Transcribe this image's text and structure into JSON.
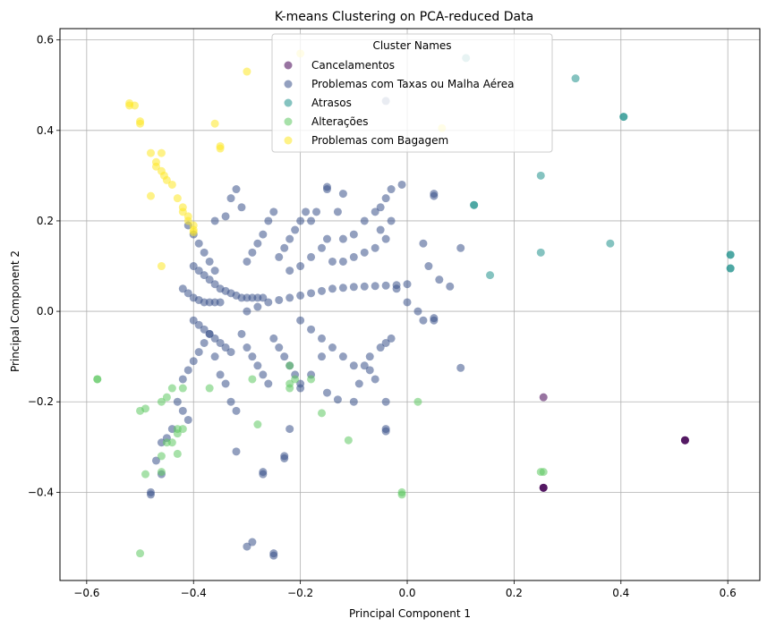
{
  "chart_data": {
    "type": "scatter",
    "title": "K-means Clustering on PCA-reduced Data",
    "xlabel": "Principal Component 1",
    "ylabel": "Principal Component 2",
    "xlim": [
      -0.65,
      0.66
    ],
    "ylim": [
      -0.595,
      0.625
    ],
    "xticks": [
      -0.6,
      -0.4,
      -0.2,
      0.0,
      0.2,
      0.4,
      0.6
    ],
    "xtick_labels": [
      "−0.6",
      "−0.4",
      "−0.2",
      "0.0",
      "0.2",
      "0.4",
      "0.6"
    ],
    "yticks": [
      -0.4,
      -0.2,
      0.0,
      0.2,
      0.4,
      0.6
    ],
    "ytick_labels": [
      "−0.4",
      "−0.2",
      "0.0",
      "0.2",
      "0.4",
      "0.6"
    ],
    "grid": true,
    "legend": {
      "title": "Cluster Names",
      "position": "top-center"
    },
    "series": [
      {
        "name": "Cancelamentos",
        "color": "#440154",
        "points": [
          [
            0.52,
            -0.285
          ],
          [
            0.52,
            -0.285
          ],
          [
            0.52,
            -0.285
          ],
          [
            0.255,
            -0.39
          ],
          [
            0.255,
            -0.39
          ],
          [
            0.255,
            -0.39
          ],
          [
            0.255,
            -0.19
          ]
        ]
      },
      {
        "name": "Problemas com Taxas ou Malha Aérea",
        "color": "#3b528b",
        "points": [
          [
            -0.4,
            0.1
          ],
          [
            -0.39,
            0.09
          ],
          [
            -0.38,
            0.08
          ],
          [
            -0.37,
            0.07
          ],
          [
            -0.36,
            0.06
          ],
          [
            -0.35,
            0.05
          ],
          [
            -0.34,
            0.045
          ],
          [
            -0.33,
            0.04
          ],
          [
            -0.32,
            0.035
          ],
          [
            -0.31,
            0.03
          ],
          [
            -0.3,
            0.03
          ],
          [
            -0.29,
            0.03
          ],
          [
            -0.28,
            0.03
          ],
          [
            -0.27,
            0.03
          ],
          [
            -0.41,
            0.19
          ],
          [
            -0.4,
            0.17
          ],
          [
            -0.39,
            0.15
          ],
          [
            -0.38,
            0.13
          ],
          [
            -0.37,
            0.11
          ],
          [
            -0.36,
            0.09
          ],
          [
            -0.42,
            0.05
          ],
          [
            -0.41,
            0.04
          ],
          [
            -0.4,
            0.03
          ],
          [
            -0.39,
            0.025
          ],
          [
            -0.38,
            0.02
          ],
          [
            -0.37,
            0.02
          ],
          [
            -0.36,
            0.02
          ],
          [
            -0.35,
            0.02
          ],
          [
            -0.4,
            -0.02
          ],
          [
            -0.39,
            -0.03
          ],
          [
            -0.38,
            -0.04
          ],
          [
            -0.37,
            -0.05
          ],
          [
            -0.36,
            -0.06
          ],
          [
            -0.35,
            -0.07
          ],
          [
            -0.34,
            -0.08
          ],
          [
            -0.33,
            -0.09
          ],
          [
            -0.42,
            -0.15
          ],
          [
            -0.41,
            -0.13
          ],
          [
            -0.4,
            -0.11
          ],
          [
            -0.39,
            -0.09
          ],
          [
            -0.38,
            -0.07
          ],
          [
            -0.37,
            -0.05
          ],
          [
            -0.43,
            -0.2
          ],
          [
            -0.42,
            -0.22
          ],
          [
            -0.41,
            -0.24
          ],
          [
            -0.44,
            -0.26
          ],
          [
            -0.45,
            -0.28
          ],
          [
            -0.46,
            -0.29
          ],
          [
            -0.47,
            -0.33
          ],
          [
            -0.46,
            -0.36
          ],
          [
            -0.48,
            -0.4
          ],
          [
            -0.48,
            -0.405
          ],
          [
            -0.3,
            -0.52
          ],
          [
            -0.29,
            -0.51
          ],
          [
            -0.25,
            -0.54
          ],
          [
            -0.25,
            -0.535
          ],
          [
            -0.32,
            -0.31
          ],
          [
            -0.27,
            -0.36
          ],
          [
            -0.27,
            -0.355
          ],
          [
            -0.23,
            -0.32
          ],
          [
            -0.23,
            -0.325
          ],
          [
            -0.04,
            -0.26
          ],
          [
            -0.04,
            -0.265
          ],
          [
            -0.1,
            -0.2
          ],
          [
            -0.09,
            -0.16
          ],
          [
            -0.08,
            -0.12
          ],
          [
            -0.07,
            -0.1
          ],
          [
            -0.05,
            -0.08
          ],
          [
            -0.04,
            -0.07
          ],
          [
            -0.03,
            -0.06
          ],
          [
            -0.3,
            0.0
          ],
          [
            -0.28,
            0.01
          ],
          [
            -0.26,
            0.02
          ],
          [
            -0.24,
            0.025
          ],
          [
            -0.22,
            0.03
          ],
          [
            -0.2,
            0.035
          ],
          [
            -0.18,
            0.04
          ],
          [
            -0.16,
            0.045
          ],
          [
            -0.14,
            0.05
          ],
          [
            -0.12,
            0.052
          ],
          [
            -0.1,
            0.054
          ],
          [
            -0.08,
            0.055
          ],
          [
            -0.06,
            0.056
          ],
          [
            -0.04,
            0.057
          ],
          [
            -0.02,
            0.058
          ],
          [
            0.0,
            0.06
          ],
          [
            -0.3,
            0.11
          ],
          [
            -0.29,
            0.13
          ],
          [
            -0.28,
            0.15
          ],
          [
            -0.27,
            0.17
          ],
          [
            -0.26,
            0.2
          ],
          [
            -0.25,
            0.22
          ],
          [
            -0.24,
            0.12
          ],
          [
            -0.23,
            0.14
          ],
          [
            -0.22,
            0.16
          ],
          [
            -0.21,
            0.18
          ],
          [
            -0.2,
            0.2
          ],
          [
            -0.19,
            0.22
          ],
          [
            -0.22,
            0.09
          ],
          [
            -0.2,
            0.1
          ],
          [
            -0.18,
            0.12
          ],
          [
            -0.16,
            0.14
          ],
          [
            -0.15,
            0.16
          ],
          [
            -0.15,
            0.27
          ],
          [
            -0.15,
            0.275
          ],
          [
            -0.12,
            0.16
          ],
          [
            -0.1,
            0.17
          ],
          [
            -0.08,
            0.2
          ],
          [
            -0.06,
            0.22
          ],
          [
            -0.05,
            0.23
          ],
          [
            -0.04,
            0.25
          ],
          [
            -0.03,
            0.27
          ],
          [
            -0.01,
            0.28
          ],
          [
            -0.14,
            0.11
          ],
          [
            -0.12,
            0.11
          ],
          [
            -0.1,
            0.12
          ],
          [
            -0.08,
            0.13
          ],
          [
            -0.06,
            0.14
          ],
          [
            -0.04,
            0.16
          ],
          [
            -0.2,
            -0.02
          ],
          [
            -0.18,
            -0.04
          ],
          [
            -0.16,
            -0.06
          ],
          [
            -0.14,
            -0.08
          ],
          [
            -0.12,
            -0.1
          ],
          [
            -0.1,
            -0.12
          ],
          [
            -0.25,
            -0.06
          ],
          [
            -0.24,
            -0.08
          ],
          [
            -0.23,
            -0.1
          ],
          [
            -0.22,
            -0.12
          ],
          [
            -0.21,
            -0.14
          ],
          [
            -0.2,
            -0.16
          ],
          [
            -0.31,
            -0.05
          ],
          [
            -0.3,
            -0.08
          ],
          [
            -0.29,
            -0.1
          ],
          [
            -0.28,
            -0.12
          ],
          [
            -0.27,
            -0.14
          ],
          [
            -0.26,
            -0.16
          ],
          [
            -0.36,
            -0.1
          ],
          [
            -0.35,
            -0.14
          ],
          [
            -0.34,
            -0.16
          ],
          [
            -0.33,
            -0.2
          ],
          [
            -0.32,
            -0.22
          ],
          [
            0.05,
            -0.02
          ],
          [
            0.05,
            -0.015
          ],
          [
            0.06,
            0.07
          ],
          [
            0.08,
            0.055
          ],
          [
            0.1,
            -0.125
          ],
          [
            -0.02,
            0.05
          ],
          [
            0.0,
            0.02
          ],
          [
            0.02,
            0.0
          ],
          [
            0.03,
            -0.02
          ],
          [
            -0.07,
            -0.13
          ],
          [
            -0.06,
            -0.15
          ],
          [
            -0.04,
            -0.2
          ],
          [
            0.05,
            0.255
          ],
          [
            0.05,
            0.26
          ],
          [
            -0.33,
            0.25
          ],
          [
            -0.32,
            0.27
          ],
          [
            -0.31,
            0.23
          ],
          [
            -0.36,
            0.2
          ],
          [
            -0.34,
            0.21
          ],
          [
            -0.2,
            -0.17
          ],
          [
            -0.18,
            -0.14
          ],
          [
            -0.15,
            -0.18
          ],
          [
            -0.13,
            -0.195
          ],
          [
            -0.05,
            0.18
          ],
          [
            -0.03,
            0.2
          ],
          [
            0.03,
            0.15
          ],
          [
            0.04,
            0.1
          ],
          [
            -0.12,
            0.26
          ],
          [
            -0.13,
            0.22
          ],
          [
            -0.18,
            0.2
          ],
          [
            -0.17,
            0.22
          ],
          [
            -0.04,
            0.465
          ],
          [
            0.1,
            0.14
          ],
          [
            -0.22,
            -0.26
          ],
          [
            -0.16,
            -0.1
          ]
        ]
      },
      {
        "name": "Atrasos",
        "color": "#21918c",
        "points": [
          [
            0.315,
            0.515
          ],
          [
            0.405,
            0.43
          ],
          [
            0.405,
            0.43
          ],
          [
            0.605,
            0.125
          ],
          [
            0.605,
            0.125
          ],
          [
            0.605,
            0.095
          ],
          [
            0.605,
            0.095
          ],
          [
            0.125,
            0.235
          ],
          [
            0.125,
            0.235
          ],
          [
            0.25,
            0.3
          ],
          [
            0.25,
            0.13
          ],
          [
            0.38,
            0.15
          ],
          [
            0.155,
            0.08
          ],
          [
            0.11,
            0.56
          ]
        ]
      },
      {
        "name": "Alterações",
        "color": "#5ec962",
        "points": [
          [
            -0.58,
            -0.15
          ],
          [
            -0.58,
            -0.15
          ],
          [
            -0.5,
            -0.22
          ],
          [
            -0.49,
            -0.215
          ],
          [
            -0.46,
            -0.2
          ],
          [
            -0.45,
            -0.19
          ],
          [
            -0.44,
            -0.17
          ],
          [
            -0.42,
            -0.17
          ],
          [
            -0.37,
            -0.17
          ],
          [
            -0.43,
            -0.26
          ],
          [
            -0.43,
            -0.27
          ],
          [
            -0.42,
            -0.26
          ],
          [
            -0.44,
            -0.29
          ],
          [
            -0.46,
            -0.32
          ],
          [
            -0.49,
            -0.36
          ],
          [
            -0.46,
            -0.355
          ],
          [
            -0.5,
            -0.535
          ],
          [
            -0.22,
            -0.12
          ],
          [
            -0.22,
            -0.16
          ],
          [
            -0.22,
            -0.17
          ],
          [
            -0.21,
            -0.15
          ],
          [
            -0.16,
            -0.225
          ],
          [
            -0.11,
            -0.285
          ],
          [
            -0.01,
            -0.4
          ],
          [
            -0.01,
            -0.405
          ],
          [
            0.25,
            -0.355
          ],
          [
            0.255,
            -0.355
          ],
          [
            0.02,
            -0.2
          ],
          [
            -0.28,
            -0.25
          ],
          [
            -0.29,
            -0.15
          ],
          [
            -0.18,
            -0.15
          ],
          [
            -0.43,
            -0.315
          ],
          [
            -0.45,
            -0.29
          ]
        ]
      },
      {
        "name": "Problemas com Bagagem",
        "color": "#fde725",
        "points": [
          [
            -0.52,
            0.46
          ],
          [
            -0.52,
            0.455
          ],
          [
            -0.51,
            0.455
          ],
          [
            -0.5,
            0.415
          ],
          [
            -0.5,
            0.42
          ],
          [
            -0.48,
            0.35
          ],
          [
            -0.47,
            0.33
          ],
          [
            -0.47,
            0.32
          ],
          [
            -0.46,
            0.31
          ],
          [
            -0.455,
            0.3
          ],
          [
            -0.45,
            0.29
          ],
          [
            -0.44,
            0.28
          ],
          [
            -0.43,
            0.25
          ],
          [
            -0.42,
            0.23
          ],
          [
            -0.42,
            0.22
          ],
          [
            -0.41,
            0.21
          ],
          [
            -0.41,
            0.2
          ],
          [
            -0.4,
            0.19
          ],
          [
            -0.4,
            0.18
          ],
          [
            -0.4,
            0.175
          ],
          [
            -0.48,
            0.255
          ],
          [
            -0.46,
            0.1
          ],
          [
            -0.36,
            0.415
          ],
          [
            -0.35,
            0.365
          ],
          [
            -0.35,
            0.36
          ],
          [
            -0.3,
            0.53
          ],
          [
            -0.2,
            0.57
          ],
          [
            0.065,
            0.405
          ],
          [
            -0.46,
            0.35
          ]
        ]
      }
    ]
  }
}
